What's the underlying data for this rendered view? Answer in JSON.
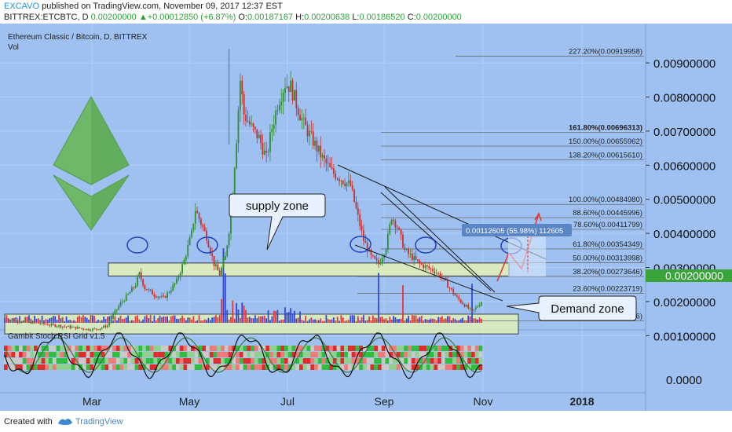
{
  "header": {
    "author": "EXCAVO",
    "published": "published on TradingView.com, November 09, 2017 12:37 EST",
    "symbol": "BITTREX:ETCBTC, D",
    "price": "0.00200000",
    "change": "+0.00012850 (+6.87%)",
    "o_label": "O:",
    "o": "0.00187167",
    "h_label": "H:",
    "h": "0.00200638",
    "l_label": "L:",
    "l": "0.00186520",
    "c_label": "C:",
    "c": "0.00200000"
  },
  "chart_title": "Ethereum Classic / Bitcoin, D, BITTREX",
  "vol_label": "Vol",
  "indicator_label": "Gambit Stoch RSI Grid v1.5",
  "annotations": {
    "supply_zone": "supply zone",
    "demand_zone": "Demand zone",
    "measure": "0.00112605 (55.98%) 112605"
  },
  "footer": {
    "created": "Created with",
    "brand": "TradingView"
  },
  "colors": {
    "bg": "#9ec1f2",
    "zone": "#e4f2b7",
    "up": "#3aa33a",
    "down": "#d73a3a",
    "vol_up": "#3348d6",
    "vol_down": "#e2383a"
  },
  "chart_data": {
    "type": "candlestick",
    "symbol": "ETCBTC",
    "interval": "D",
    "y_ticks": [
      "0.00900000",
      "0.00800000",
      "0.00700000",
      "0.00600000",
      "0.00500000",
      "0.00400000",
      "0.00300000",
      "0.00200000",
      "0.00100000"
    ],
    "y_ticks_values": [
      0.009,
      0.008,
      0.007,
      0.006,
      0.005,
      0.004,
      0.003,
      0.002,
      0.001
    ],
    "indicator_tick": "0.0000",
    "x_ticks": [
      "Mar",
      "May",
      "Jul",
      "Sep",
      "Nov",
      "2018"
    ],
    "current_price": "0.00200000",
    "fib_levels": [
      {
        "label": "227.20%(0.00919958)",
        "value": 0.00919958
      },
      {
        "label": "161.80%(0.00696313)",
        "value": 0.00696313
      },
      {
        "label": "150.00%(0.00655962)",
        "value": 0.00655962
      },
      {
        "label": "138.20%(0.00615610)",
        "value": 0.0061561
      },
      {
        "label": "100.00%(0.00484980)",
        "value": 0.0048498
      },
      {
        "label": "88.60%(0.00445996)",
        "value": 0.00445996
      },
      {
        "label": "78.60%(0.00411799)",
        "value": 0.00411799
      },
      {
        "label": "61.80%(0.00354349)",
        "value": 0.00354349
      },
      {
        "label": "50.00%(0.00313998)",
        "value": 0.00313998
      },
      {
        "label": "38.20%(0.00273646)",
        "value": 0.00273646
      },
      {
        "label": "23.60%(0.00223719)",
        "value": 0.00223719
      },
      {
        "label": "0.00%(0.00143016)",
        "value": 0.00143016
      }
    ],
    "supply_zone": [
      0.00275,
      0.00313
    ],
    "demand_zone": [
      0.00105,
      0.00163
    ],
    "price_path": [
      [
        0,
        0.00148
      ],
      [
        10,
        0.00142
      ],
      [
        20,
        0.00135
      ],
      [
        30,
        0.00128
      ],
      [
        40,
        0.00122
      ],
      [
        45,
        0.00118
      ],
      [
        50,
        0.0012
      ],
      [
        55,
        0.0013
      ],
      [
        58,
        0.0016
      ],
      [
        62,
        0.00195
      ],
      [
        66,
        0.0022
      ],
      [
        70,
        0.0025
      ],
      [
        72,
        0.0028
      ],
      [
        75,
        0.0024
      ],
      [
        80,
        0.0022
      ],
      [
        85,
        0.0021
      ],
      [
        88,
        0.0023
      ],
      [
        92,
        0.0026
      ],
      [
        96,
        0.0032
      ],
      [
        100,
        0.004
      ],
      [
        102,
        0.0047
      ],
      [
        105,
        0.0043
      ],
      [
        108,
        0.0039
      ],
      [
        112,
        0.0031
      ],
      [
        115,
        0.0028
      ],
      [
        118,
        0.0033
      ],
      [
        121,
        0.0045
      ],
      [
        124,
        0.0068
      ],
      [
        126,
        0.0085
      ],
      [
        128,
        0.0075
      ],
      [
        132,
        0.0071
      ],
      [
        136,
        0.0068
      ],
      [
        140,
        0.0062
      ],
      [
        143,
        0.0071
      ],
      [
        146,
        0.0078
      ],
      [
        150,
        0.0084
      ],
      [
        153,
        0.0083
      ],
      [
        156,
        0.0078
      ],
      [
        160,
        0.0072
      ],
      [
        165,
        0.0067
      ],
      [
        170,
        0.0062
      ],
      [
        175,
        0.0058
      ],
      [
        180,
        0.0056
      ],
      [
        185,
        0.0054
      ],
      [
        188,
        0.0047
      ],
      [
        192,
        0.0038
      ],
      [
        196,
        0.0033
      ],
      [
        200,
        0.0031
      ],
      [
        204,
        0.0036
      ],
      [
        207,
        0.0045
      ],
      [
        210,
        0.0042
      ],
      [
        214,
        0.0035
      ],
      [
        218,
        0.0033
      ],
      [
        222,
        0.0031
      ],
      [
        226,
        0.003
      ],
      [
        230,
        0.0029
      ],
      [
        234,
        0.0027
      ],
      [
        238,
        0.0024
      ],
      [
        242,
        0.0021
      ],
      [
        246,
        0.0019
      ],
      [
        250,
        0.0017
      ],
      [
        253,
        0.00187
      ],
      [
        255,
        0.002
      ]
    ]
  }
}
